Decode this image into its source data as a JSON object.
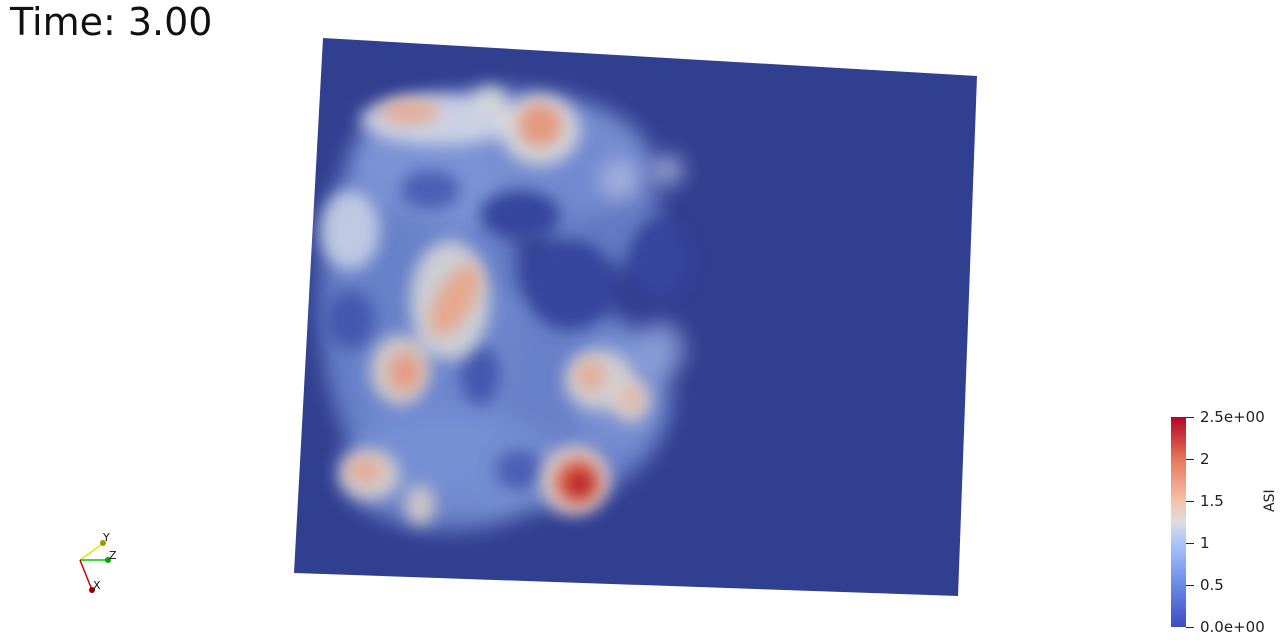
{
  "time_label": "Time: 3.00",
  "colorbar": {
    "title": "ASI",
    "range": [
      0.0,
      2.5
    ],
    "ticks": [
      {
        "value": 2.5,
        "label": "2.5e+00"
      },
      {
        "value": 2.0,
        "label": "2"
      },
      {
        "value": 1.5,
        "label": "1.5"
      },
      {
        "value": 1.0,
        "label": "1"
      },
      {
        "value": 0.5,
        "label": "0.5"
      },
      {
        "value": 0.0,
        "label": "0.0e+00"
      }
    ],
    "colors": {
      "low": "#3b4cc0",
      "mid": "#dddddd",
      "high": "#b40426"
    }
  },
  "background_field_color": "#313f91",
  "orientation_axes": {
    "labels": [
      "Y",
      "Z",
      "X"
    ],
    "colors": {
      "Y": "#e6e600",
      "Z": "#00cc00",
      "X": "#cc0000"
    }
  }
}
